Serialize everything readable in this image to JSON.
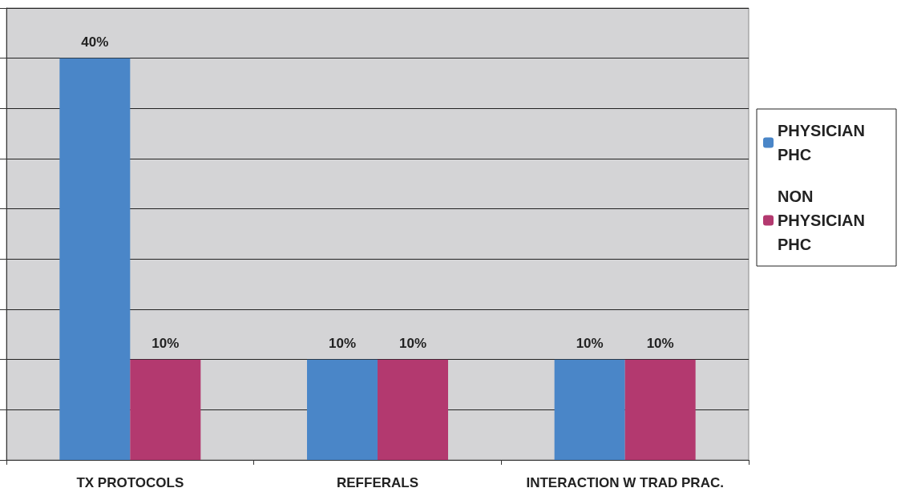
{
  "chart_data": {
    "type": "bar",
    "categories": [
      "TX PROTOCOLS",
      "REFFERALS",
      "INTERACTION W TRAD PRAC."
    ],
    "series": [
      {
        "name": "PHYSICIAN PHC",
        "color": "#4a86c8",
        "values": [
          40,
          10,
          10
        ],
        "value_labels": [
          "40%",
          "10%",
          "10%"
        ]
      },
      {
        "name": "NON PHYSICIAN PHC",
        "color": "#b3396f",
        "values": [
          10,
          10,
          10
        ],
        "value_labels": [
          "10%",
          "10%",
          "10%"
        ]
      }
    ],
    "grid": "y",
    "legend": "right",
    "tick_labels": "x"
  }
}
